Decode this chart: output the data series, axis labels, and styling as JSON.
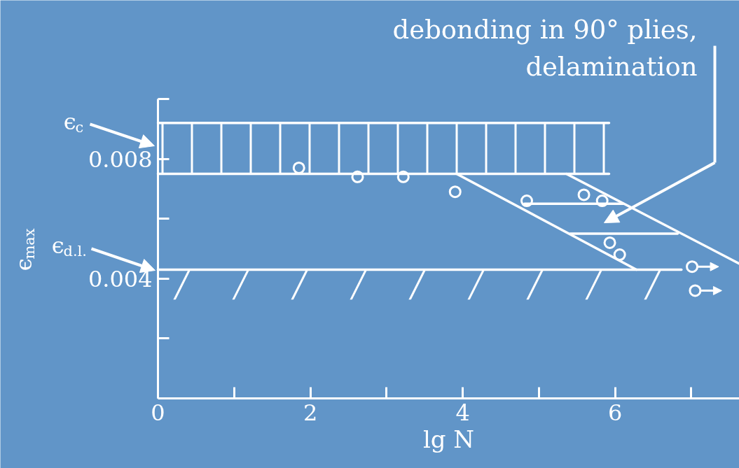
{
  "chart_data": {
    "type": "line",
    "xlabel": "lg N",
    "ylabel": "ϵ$_{max}$",
    "xlim": [
      0,
      7.63
    ],
    "xticks": [
      0,
      {
        "value": 1,
        "label": null
      },
      2,
      {
        "value": 3,
        "label": null
      },
      4,
      {
        "value": 5,
        "label": null
      },
      6,
      {
        "value": 7,
        "label": null
      }
    ],
    "ylim": [
      0,
      0.01
    ],
    "yticks": [
      {
        "value": 0.002,
        "label": null
      },
      0.004,
      {
        "value": 0.006,
        "label": null
      },
      0.008,
      {
        "value": 0.01,
        "label": null
      }
    ],
    "grid": false,
    "series": [
      {
        "color": "#ffffff",
        "x": [
          0,
          5.92
        ],
        "values": [
          0.0092,
          0.0092
        ]
      },
      {
        "color": "#ffffff",
        "x": [
          0,
          5.92
        ],
        "values": [
          0.0075,
          0.0075
        ],
        "lower": [
          0.0075,
          0.0075
        ],
        "upper": [
          0.0092,
          0.0092
        ]
      },
      {
        "color": "#ffffff",
        "x": [
          3.92,
          6.28
        ],
        "values": [
          0.0075,
          0.0043
        ]
      },
      {
        "color": "#ffffff",
        "x": [
          5.36,
          7.63
        ],
        "values": [
          0.0075,
          0.0045
        ]
      },
      {
        "color": "#ffffff",
        "x": [
          0,
          6.87
        ],
        "values": [
          0.0043,
          0.0043
        ],
        "lower": [
          0.0033,
          0.0033
        ],
        "upper": [
          0.0043,
          0.0043
        ]
      },
      {
        "color": "#ffffff",
        "x": [
          4.81,
          6.11
        ],
        "values": [
          0.0065,
          0.0065
        ]
      },
      {
        "color": "#ffffff",
        "x": [
          5.41,
          6.82
        ],
        "values": [
          0.0055,
          0.0055
        ]
      },
      {
        "type": "scatter",
        "color": "#ffffff",
        "marker": "circle",
        "x": [
          1.85,
          2.62,
          3.22,
          3.9,
          4.84,
          5.59,
          5.83,
          5.93,
          6.06
        ],
        "values": [
          0.0077,
          0.0074,
          0.0074,
          0.0069,
          0.0066,
          0.0068,
          0.0066,
          0.0052,
          0.0048
        ]
      },
      {
        "type": "scatter",
        "color": "#ffffff",
        "marker": "circle",
        "line_style": "solid",
        "x": [
          7.01,
          7.05
        ],
        "values": [
          0.0044,
          0.0036
        ]
      }
    ],
    "annotations": [
      "ϵ$_{c}$",
      "ϵ$_{d.l.}$",
      "debonding in 90° plies,\ndelamination"
    ]
  }
}
